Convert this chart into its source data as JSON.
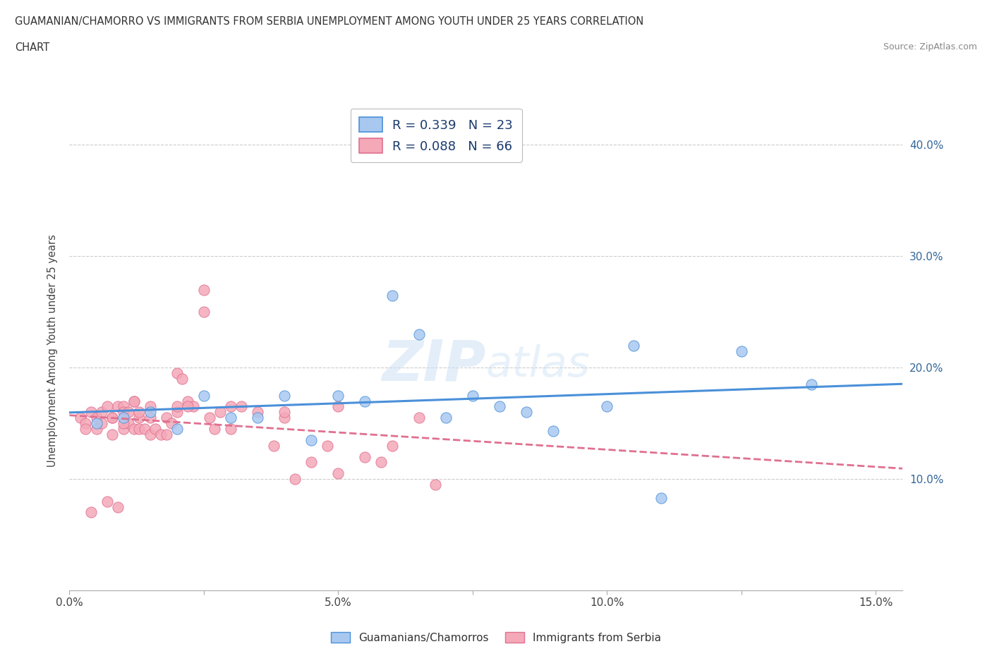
{
  "title_line1": "GUAMANIAN/CHAMORRO VS IMMIGRANTS FROM SERBIA UNEMPLOYMENT AMONG YOUTH UNDER 25 YEARS CORRELATION",
  "title_line2": "CHART",
  "source": "Source: ZipAtlas.com",
  "ylabel": "Unemployment Among Youth under 25 years",
  "xlim": [
    0.0,
    0.155
  ],
  "ylim": [
    0.0,
    0.43
  ],
  "xticks": [
    0.0,
    0.025,
    0.05,
    0.075,
    0.1,
    0.125,
    0.15
  ],
  "xticklabels": [
    "0.0%",
    "",
    "5.0%",
    "",
    "10.0%",
    "",
    "15.0%"
  ],
  "yticks": [
    0.0,
    0.1,
    0.2,
    0.3,
    0.4
  ],
  "yticklabels": [
    "",
    "10.0%",
    "20.0%",
    "30.0%",
    "40.0%"
  ],
  "watermark_zip": "ZIP",
  "watermark_atlas": "atlas",
  "legend_label1": "Guamanians/Chamorros",
  "legend_label2": "Immigrants from Serbia",
  "color_blue": "#a8c8f0",
  "color_pink": "#f4a8b8",
  "line_color_blue": "#4a90d9",
  "line_color_pink": "#e07090",
  "background_color": "#ffffff",
  "grid_color": "#cccccc",
  "blue_x": [
    0.005,
    0.01,
    0.015,
    0.02,
    0.025,
    0.03,
    0.035,
    0.04,
    0.045,
    0.05,
    0.055,
    0.06,
    0.065,
    0.07,
    0.075,
    0.08,
    0.085,
    0.09,
    0.1,
    0.105,
    0.11,
    0.125,
    0.138
  ],
  "blue_y": [
    0.15,
    0.155,
    0.16,
    0.145,
    0.175,
    0.155,
    0.155,
    0.175,
    0.135,
    0.175,
    0.17,
    0.265,
    0.23,
    0.155,
    0.175,
    0.165,
    0.16,
    0.143,
    0.165,
    0.22,
    0.083,
    0.215,
    0.185
  ],
  "pink_x": [
    0.002,
    0.003,
    0.003,
    0.004,
    0.004,
    0.005,
    0.005,
    0.006,
    0.006,
    0.007,
    0.007,
    0.008,
    0.008,
    0.009,
    0.009,
    0.01,
    0.01,
    0.01,
    0.011,
    0.011,
    0.012,
    0.012,
    0.013,
    0.013,
    0.013,
    0.014,
    0.015,
    0.015,
    0.016,
    0.017,
    0.018,
    0.019,
    0.02,
    0.02,
    0.021,
    0.022,
    0.023,
    0.025,
    0.026,
    0.027,
    0.028,
    0.03,
    0.032,
    0.035,
    0.038,
    0.04,
    0.042,
    0.045,
    0.048,
    0.05,
    0.055,
    0.058,
    0.06,
    0.065,
    0.068,
    0.02,
    0.03,
    0.04,
    0.05,
    0.008,
    0.01,
    0.012,
    0.015,
    0.018,
    0.022,
    0.025
  ],
  "pink_y": [
    0.155,
    0.15,
    0.145,
    0.16,
    0.07,
    0.145,
    0.155,
    0.15,
    0.16,
    0.08,
    0.165,
    0.155,
    0.14,
    0.165,
    0.075,
    0.165,
    0.16,
    0.145,
    0.16,
    0.15,
    0.17,
    0.145,
    0.155,
    0.145,
    0.16,
    0.145,
    0.14,
    0.165,
    0.145,
    0.14,
    0.155,
    0.15,
    0.195,
    0.16,
    0.19,
    0.17,
    0.165,
    0.25,
    0.155,
    0.145,
    0.16,
    0.145,
    0.165,
    0.16,
    0.13,
    0.155,
    0.1,
    0.115,
    0.13,
    0.105,
    0.12,
    0.115,
    0.13,
    0.155,
    0.095,
    0.165,
    0.165,
    0.16,
    0.165,
    0.155,
    0.15,
    0.17,
    0.155,
    0.14,
    0.165,
    0.27
  ]
}
